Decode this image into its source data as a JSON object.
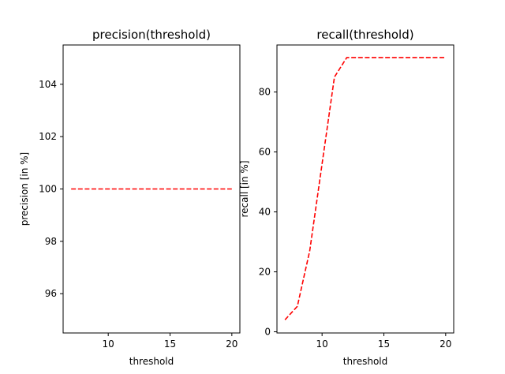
{
  "chart_data": [
    {
      "type": "line",
      "title": "precision(threshold)",
      "xlabel": "threshold",
      "ylabel": "precision [in %]",
      "xlim": [
        6.35,
        20.65
      ],
      "ylim": [
        94.5,
        105.5
      ],
      "xticks": [
        10,
        15,
        20
      ],
      "yticks": [
        96,
        98,
        100,
        102,
        104
      ],
      "grid": false,
      "series": [
        {
          "style": "dashed",
          "color": "#ff0000",
          "x": [
            7,
            8,
            9,
            10,
            11,
            12,
            13,
            14,
            15,
            16,
            17,
            18,
            19,
            20
          ],
          "y": [
            100,
            100,
            100,
            100,
            100,
            100,
            100,
            100,
            100,
            100,
            100,
            100,
            100,
            100
          ]
        }
      ]
    },
    {
      "type": "line",
      "title": "recall(threshold)",
      "xlabel": "threshold",
      "ylabel": "recall [in %]",
      "xlim": [
        6.35,
        20.65
      ],
      "ylim": [
        -0.4,
        95.7
      ],
      "xticks": [
        10,
        15,
        20
      ],
      "yticks": [
        0,
        20,
        40,
        60,
        80
      ],
      "grid": false,
      "series": [
        {
          "style": "dashed",
          "color": "#ff0000",
          "x": [
            7,
            8,
            9,
            10,
            11,
            12,
            13,
            14,
            15,
            16,
            17,
            18,
            19,
            20
          ],
          "y": [
            4,
            8.5,
            27,
            56,
            85,
            91.5,
            91.5,
            91.5,
            91.5,
            91.5,
            91.5,
            91.5,
            91.5,
            91.5
          ]
        }
      ]
    }
  ]
}
